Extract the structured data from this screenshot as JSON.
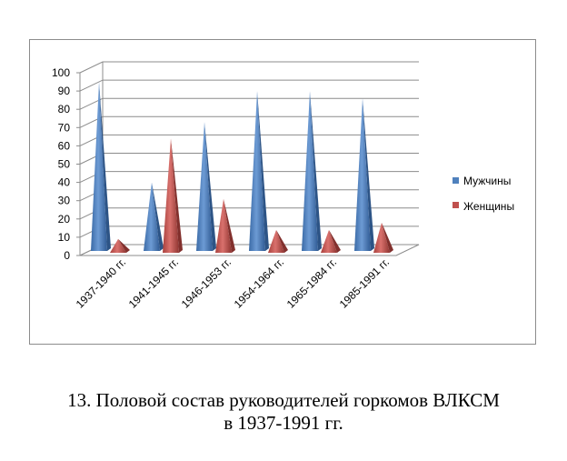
{
  "chart_data": {
    "type": "bar",
    "variant": "3d-cone",
    "categories": [
      "1937-1940  гг.",
      "1941-1945  гг.",
      "1946-1953  гг.",
      "1954-1964  гг.",
      "1965-1984  гг.",
      "1985-1991  гг."
    ],
    "series": [
      {
        "name": "Мужчины",
        "values": [
          93,
          38,
          71,
          88,
          88,
          84
        ]
      },
      {
        "name": "Женщины",
        "values": [
          7,
          62,
          29,
          12,
          12,
          16
        ]
      }
    ],
    "ylim": [
      0,
      100
    ],
    "yticks": [
      "0",
      "10",
      "20",
      "30",
      "40",
      "50",
      "60",
      "70",
      "80",
      "90",
      "100"
    ],
    "grid": true,
    "legend_position": "right",
    "colors": {
      "male": "#4f81bd",
      "female": "#c0504d"
    }
  },
  "caption": {
    "line1": "13. Половой состав руководителей горкомов ВЛКСМ",
    "line2": "в 1937-1991 гг."
  }
}
